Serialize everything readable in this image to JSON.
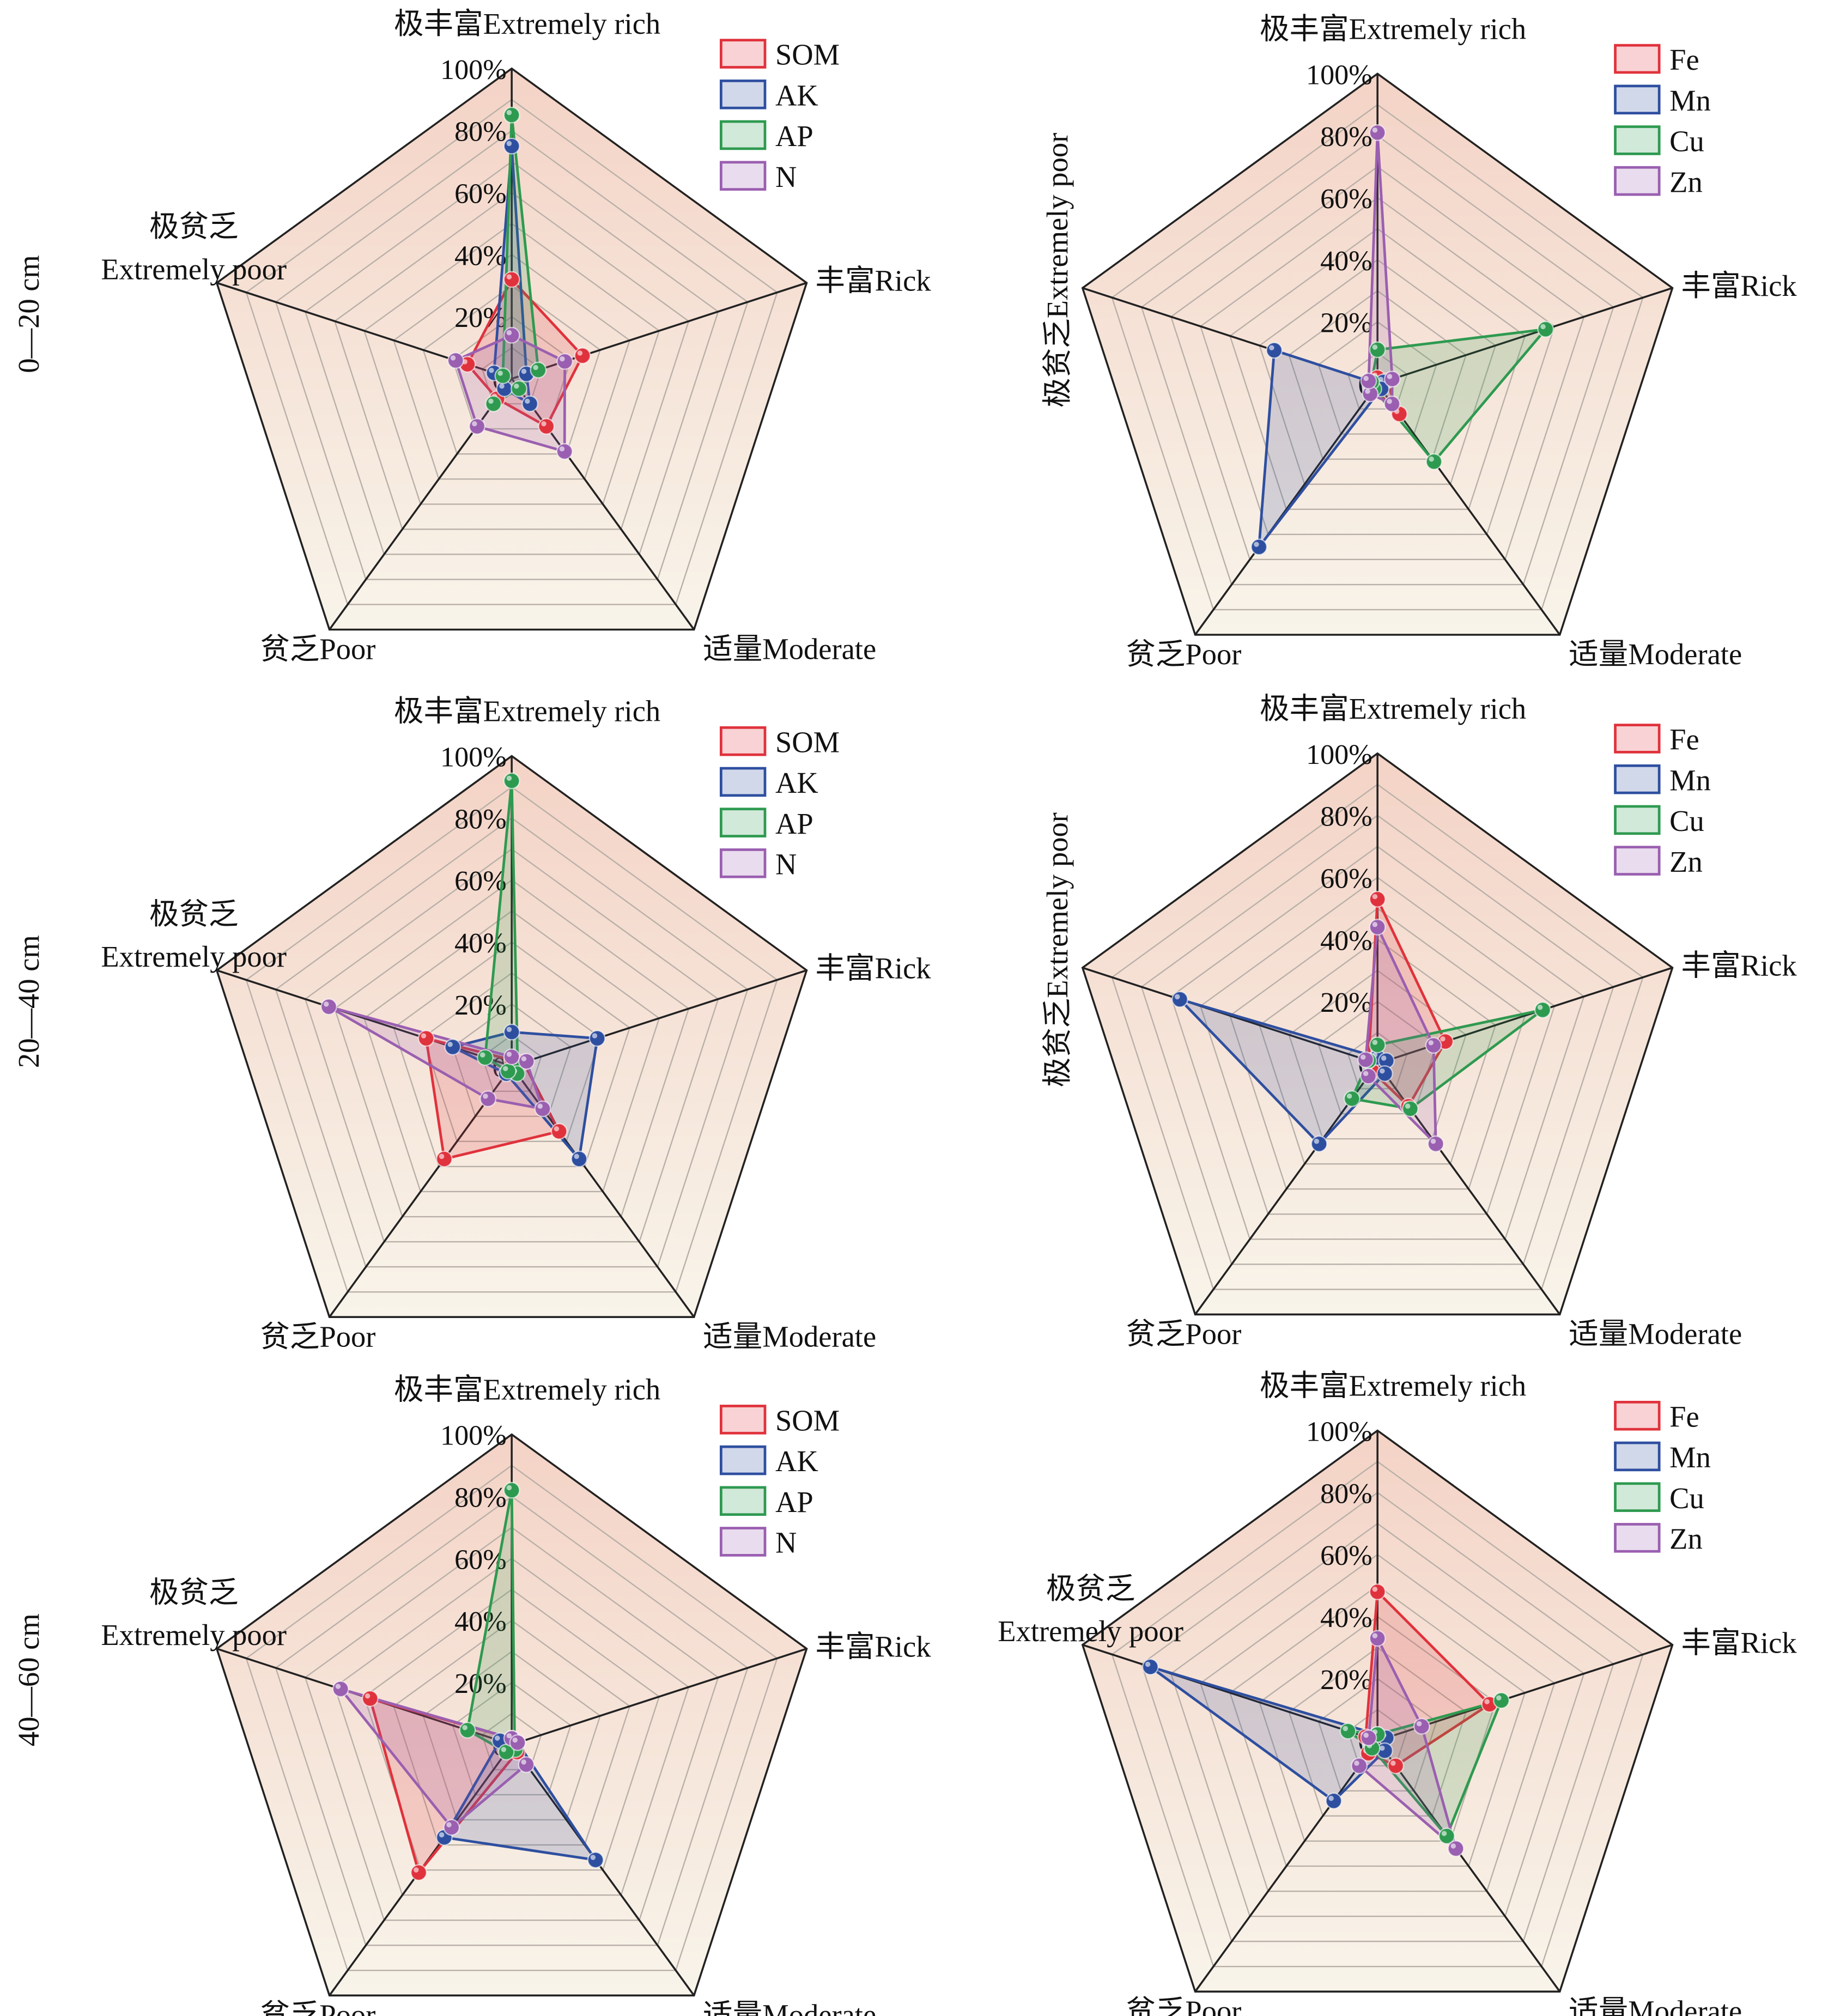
{
  "axis_colors": {
    "grid": "#b8b0a8",
    "spoke": "#222222",
    "bg_top": "#f4d3c6",
    "bg_bottom": "#f8f4ea"
  },
  "chart_data": [
    {
      "type": "radar",
      "row_label": "0—20 cm",
      "axes": [
        "极丰富Extremely rich",
        "丰富Rick",
        "适量Moderate",
        "贫乏Poor",
        "极贫乏Extremely poor"
      ],
      "extremely_poor_label_lines": [
        "极贫乏",
        "Extremely poor"
      ],
      "ticks": [
        "0",
        "20%",
        "40%",
        "60%",
        "80%",
        "100%"
      ],
      "range": [
        0,
        100
      ],
      "legend": "top-right",
      "series": [
        {
          "name": "SOM",
          "color": "#e0323c",
          "values": [
            32,
            24,
            19,
            8,
            15
          ]
        },
        {
          "name": "AK",
          "color": "#2e4fa0",
          "values": [
            75,
            5,
            10,
            4,
            6
          ]
        },
        {
          "name": "AP",
          "color": "#2e9a50",
          "values": [
            85,
            9,
            4,
            10,
            3
          ]
        },
        {
          "name": "N",
          "color": "#9a5fb0",
          "values": [
            14,
            18,
            29,
            19,
            19
          ]
        }
      ]
    },
    {
      "type": "radar",
      "row_label": "",
      "axes": [
        "极丰富Extremely rich",
        "丰富Rick",
        "适量Moderate",
        "贫乏Poor",
        "极贫乏Extremely poor"
      ],
      "ticks": [
        "0",
        "20%",
        "40%",
        "60%",
        "80%",
        "100%"
      ],
      "range": [
        0,
        100
      ],
      "legend": "top-right",
      "series": [
        {
          "name": "Fe",
          "color": "#e0323c",
          "values": [
            2,
            3,
            12,
            2,
            2
          ]
        },
        {
          "name": "Mn",
          "color": "#2e4fa0",
          "values": [
            0,
            2,
            2,
            65,
            35
          ]
        },
        {
          "name": "Cu",
          "color": "#2e9a50",
          "values": [
            11,
            57,
            31,
            2,
            2
          ]
        },
        {
          "name": "Zn",
          "color": "#9a5fb0",
          "values": [
            81,
            5,
            8,
            4,
            3
          ]
        }
      ]
    },
    {
      "type": "radar",
      "row_label": "20—40 cm",
      "axes": [
        "极丰富Extremely rich",
        "丰富Rick",
        "适量Moderate",
        "贫乏Poor",
        "极贫乏Extremely poor"
      ],
      "extremely_poor_label_lines": [
        "极贫乏",
        "Extremely poor"
      ],
      "ticks": [
        "0",
        "20%",
        "40%",
        "60%",
        "80%",
        "100%"
      ],
      "range": [
        0,
        100
      ],
      "legend": "top-right",
      "series": [
        {
          "name": "SOM",
          "color": "#e0323c",
          "values": [
            2,
            4,
            26,
            37,
            29
          ]
        },
        {
          "name": "AK",
          "color": "#2e4fa0",
          "values": [
            11,
            29,
            37,
            3,
            20
          ]
        },
        {
          "name": "AP",
          "color": "#2e9a50",
          "values": [
            92,
            2,
            3,
            2,
            9
          ]
        },
        {
          "name": "N",
          "color": "#9a5fb0",
          "values": [
            3,
            5,
            17,
            13,
            62
          ]
        }
      ]
    },
    {
      "type": "radar",
      "row_label": "",
      "axes": [
        "极丰富Extremely rich",
        "丰富Rick",
        "适量Moderate",
        "贫乏Poor",
        "极贫乏Extremely poor"
      ],
      "ticks": [
        "0",
        "20%",
        "40%",
        "60%",
        "80%",
        "100%"
      ],
      "range": [
        0,
        100
      ],
      "legend": "top-right",
      "series": [
        {
          "name": "Fe",
          "color": "#e0323c",
          "values": [
            53,
            23,
            17,
            3,
            3
          ]
        },
        {
          "name": "Mn",
          "color": "#2e4fa0",
          "values": [
            2,
            3,
            4,
            32,
            67
          ]
        },
        {
          "name": "Cu",
          "color": "#2e9a50",
          "values": [
            6,
            56,
            18,
            14,
            3
          ]
        },
        {
          "name": "Zn",
          "color": "#9a5fb0",
          "values": [
            44,
            19,
            32,
            5,
            4
          ]
        }
      ]
    },
    {
      "type": "radar",
      "row_label": "40—60 cm",
      "axes": [
        "极丰富Extremely rich",
        "丰富Rick",
        "适量Moderate",
        "贫乏Poor",
        "极贫乏Extremely poor"
      ],
      "extremely_poor_label_lines": [
        "极贫乏",
        "Extremely poor"
      ],
      "ticks": [
        "0",
        "20%",
        "40%",
        "60%",
        "80%",
        "100%"
      ],
      "range": [
        0,
        100
      ],
      "legend": "top-right",
      "series": [
        {
          "name": "SOM",
          "color": "#e0323c",
          "values": [
            2,
            2,
            3,
            51,
            48
          ]
        },
        {
          "name": "AK",
          "color": "#2e4fa0",
          "values": [
            2,
            2,
            46,
            37,
            4
          ]
        },
        {
          "name": "AP",
          "color": "#2e9a50",
          "values": [
            82,
            1,
            2,
            3,
            15
          ]
        },
        {
          "name": "N",
          "color": "#9a5fb0",
          "values": [
            2,
            2,
            8,
            33,
            58
          ]
        }
      ]
    },
    {
      "type": "radar",
      "row_label": "",
      "axes": [
        "极丰富Extremely rich",
        "丰富Rick",
        "适量Moderate",
        "贫乏Poor",
        "极贫乏Extremely poor"
      ],
      "extremely_poor_label_lines": [
        "极贫乏",
        "Extremely poor"
      ],
      "ticks": [
        "0",
        "20%",
        "40%",
        "60%",
        "80%",
        "100%"
      ],
      "range": [
        0,
        100
      ],
      "legend": "top-right",
      "series": [
        {
          "name": "Fe",
          "color": "#e0323c",
          "values": [
            48,
            38,
            10,
            5,
            4
          ]
        },
        {
          "name": "Mn",
          "color": "#2e4fa0",
          "values": [
            2,
            3,
            4,
            24,
            77
          ]
        },
        {
          "name": "Cu",
          "color": "#2e9a50",
          "values": [
            2,
            42,
            38,
            3,
            10
          ]
        },
        {
          "name": "Zn",
          "color": "#9a5fb0",
          "values": [
            33,
            15,
            43,
            10,
            3
          ]
        }
      ]
    }
  ]
}
